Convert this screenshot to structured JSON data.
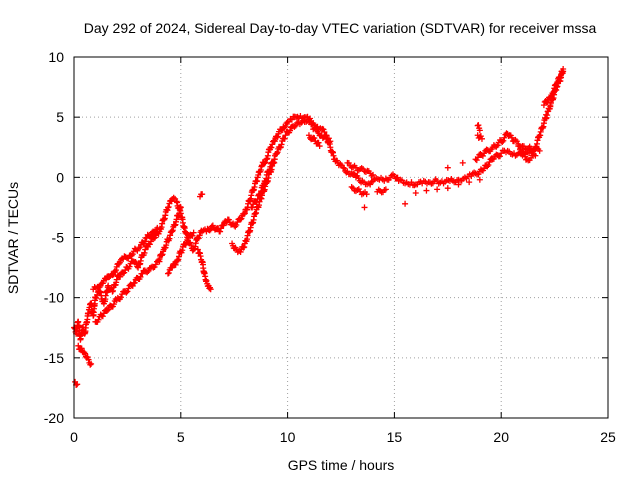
{
  "chart_data": {
    "type": "scatter",
    "title": "Day 292 of 2024, Sidereal Day-to-day VTEC variation (SDTVAR) for receiver mssa",
    "xlabel": "GPS time / hours",
    "ylabel": "SDTVAR / TECUs",
    "xlim": [
      0,
      25
    ],
    "ylim": [
      -20,
      10
    ],
    "xticks": [
      0,
      5,
      10,
      15,
      20,
      25
    ],
    "yticks": [
      -20,
      -15,
      -10,
      -5,
      0,
      5,
      10
    ],
    "grid": true,
    "marker": "+",
    "color": "#ff0000",
    "series": [
      {
        "name": "SDTVAR",
        "points": [
          [
            0.0,
            -12.5
          ],
          [
            0.1,
            -13.0
          ],
          [
            0.2,
            -12.0
          ],
          [
            0.3,
            -13.5
          ],
          [
            0.4,
            -12.5
          ],
          [
            0.5,
            -13.0
          ],
          [
            0.6,
            -12.0
          ],
          [
            0.7,
            -11.0
          ],
          [
            0.8,
            -10.5
          ],
          [
            0.9,
            -11.5
          ],
          [
            1.0,
            -10.0
          ],
          [
            1.2,
            -9.5
          ],
          [
            1.4,
            -10.5
          ],
          [
            1.6,
            -9.0
          ],
          [
            1.8,
            -9.5
          ],
          [
            2.0,
            -8.5
          ],
          [
            2.2,
            -8.0
          ],
          [
            2.5,
            -7.5
          ],
          [
            2.8,
            -7.0
          ],
          [
            3.0,
            -7.5
          ],
          [
            3.2,
            -6.5
          ],
          [
            3.5,
            -5.5
          ],
          [
            3.8,
            -5.0
          ],
          [
            4.0,
            -4.5
          ],
          [
            4.2,
            -3.5
          ],
          [
            4.4,
            -2.5
          ],
          [
            4.6,
            -1.8
          ],
          [
            4.8,
            -2.0
          ],
          [
            5.0,
            -3.0
          ],
          [
            5.2,
            -4.5
          ],
          [
            5.4,
            -5.5
          ],
          [
            5.6,
            -6.0
          ],
          [
            5.8,
            -5.0
          ],
          [
            6.0,
            -4.5
          ],
          [
            6.2,
            -4.5
          ],
          [
            6.5,
            -4.0
          ],
          [
            6.8,
            -4.5
          ],
          [
            7.0,
            -4.0
          ],
          [
            7.2,
            -3.5
          ],
          [
            7.5,
            -4.0
          ],
          [
            7.8,
            -3.5
          ],
          [
            8.0,
            -3.0
          ],
          [
            8.2,
            -2.0
          ],
          [
            8.4,
            -1.0
          ],
          [
            8.6,
            0.0
          ],
          [
            8.8,
            1.0
          ],
          [
            9.0,
            1.5
          ],
          [
            9.2,
            2.5
          ],
          [
            9.4,
            3.0
          ],
          [
            9.6,
            3.8
          ],
          [
            9.8,
            4.2
          ],
          [
            10.0,
            4.6
          ],
          [
            10.2,
            4.8
          ],
          [
            10.4,
            5.0
          ],
          [
            10.6,
            5.1
          ],
          [
            10.8,
            5.0
          ],
          [
            11.0,
            4.8
          ],
          [
            11.2,
            4.5
          ],
          [
            11.4,
            4.2
          ],
          [
            11.6,
            4.0
          ],
          [
            11.8,
            3.5
          ],
          [
            12.0,
            2.5
          ],
          [
            12.2,
            1.5
          ],
          [
            12.4,
            1.0
          ],
          [
            12.6,
            0.8
          ],
          [
            12.8,
            0.5
          ],
          [
            13.0,
            0.3
          ],
          [
            13.2,
            0.0
          ],
          [
            13.5,
            -0.3
          ],
          [
            13.8,
            -0.5
          ],
          [
            14.0,
            -0.3
          ],
          [
            14.3,
            -0.2
          ],
          [
            14.6,
            -0.1
          ],
          [
            15.0,
            0.1
          ],
          [
            15.2,
            -0.3
          ],
          [
            15.5,
            -0.5
          ],
          [
            15.8,
            -0.4
          ],
          [
            16.0,
            -0.6
          ],
          [
            16.3,
            -0.5
          ],
          [
            16.6,
            -0.4
          ],
          [
            17.0,
            -0.3
          ],
          [
            17.3,
            -0.5
          ],
          [
            17.6,
            -0.3
          ],
          [
            18.0,
            -0.2
          ],
          [
            18.3,
            0.0
          ],
          [
            18.6,
            0.1
          ],
          [
            19.0,
            0.5
          ],
          [
            19.3,
            1.0
          ],
          [
            19.6,
            1.5
          ],
          [
            20.0,
            2.0
          ],
          [
            20.3,
            2.2
          ],
          [
            20.6,
            2.0
          ],
          [
            21.0,
            1.8
          ],
          [
            21.3,
            2.0
          ],
          [
            21.6,
            2.5
          ],
          [
            21.8,
            3.5
          ],
          [
            22.0,
            4.5
          ],
          [
            22.2,
            5.5
          ],
          [
            22.4,
            6.5
          ],
          [
            22.6,
            7.5
          ],
          [
            22.8,
            8.3
          ],
          [
            22.9,
            8.8
          ],
          [
            0.2,
            -14.0
          ],
          [
            0.4,
            -14.5
          ],
          [
            0.6,
            -15.0
          ],
          [
            0.8,
            -15.5
          ],
          [
            0.05,
            -17.0
          ],
          [
            0.15,
            -17.2
          ],
          [
            0.9,
            -9.3
          ],
          [
            1.1,
            -9.1
          ],
          [
            1.3,
            -8.8
          ],
          [
            1.5,
            -8.5
          ],
          [
            1.7,
            -8.2
          ],
          [
            1.9,
            -7.8
          ],
          [
            2.1,
            -7.2
          ],
          [
            2.3,
            -6.8
          ],
          [
            2.6,
            -6.5
          ],
          [
            2.9,
            -6.0
          ],
          [
            3.1,
            -5.8
          ],
          [
            3.4,
            -5.0
          ],
          [
            3.7,
            -4.5
          ],
          [
            3.9,
            -4.2
          ],
          [
            4.0,
            -6.8
          ],
          [
            4.2,
            -6.0
          ],
          [
            4.4,
            -5.2
          ],
          [
            4.6,
            -4.5
          ],
          [
            4.8,
            -3.5
          ],
          [
            5.0,
            -2.5
          ],
          [
            5.8,
            -6.0
          ],
          [
            6.0,
            -7.0
          ],
          [
            6.1,
            -8.0
          ],
          [
            6.2,
            -8.6
          ],
          [
            6.3,
            -9.0
          ],
          [
            6.4,
            -9.3
          ],
          [
            5.9,
            -1.6
          ],
          [
            6.0,
            -1.4
          ],
          [
            4.4,
            -8.0
          ],
          [
            4.6,
            -7.5
          ],
          [
            4.8,
            -7.0
          ],
          [
            5.0,
            -6.2
          ],
          [
            5.3,
            -5.2
          ],
          [
            5.6,
            -4.6
          ],
          [
            7.4,
            -5.5
          ],
          [
            7.6,
            -6.0
          ],
          [
            7.8,
            -6.2
          ],
          [
            8.0,
            -5.5
          ],
          [
            8.2,
            -4.5
          ],
          [
            8.5,
            -3.0
          ],
          [
            8.8,
            -1.5
          ],
          [
            9.0,
            -0.5
          ],
          [
            9.2,
            0.5
          ],
          [
            9.4,
            1.5
          ],
          [
            11.2,
            4.0
          ],
          [
            11.4,
            3.8
          ],
          [
            11.6,
            3.5
          ],
          [
            11.8,
            3.2
          ],
          [
            12.0,
            3.0
          ],
          [
            11.0,
            3.5
          ],
          [
            11.3,
            3.0
          ],
          [
            11.5,
            2.6
          ],
          [
            12.8,
            1.2
          ],
          [
            13.2,
            0.8
          ],
          [
            13.6,
            0.5
          ],
          [
            14.0,
            0.2
          ],
          [
            13.0,
            -0.8
          ],
          [
            13.4,
            -1.2
          ],
          [
            13.7,
            -1.4
          ],
          [
            14.2,
            -1.2
          ],
          [
            14.6,
            -1.0
          ],
          [
            13.6,
            -2.5
          ],
          [
            15.5,
            -2.2
          ],
          [
            16.0,
            -1.3
          ],
          [
            16.5,
            -1.1
          ],
          [
            17.0,
            -1.0
          ],
          [
            17.5,
            -0.9
          ],
          [
            18.0,
            -0.6
          ],
          [
            18.5,
            -0.4
          ],
          [
            19.0,
            -0.2
          ],
          [
            17.5,
            0.8
          ],
          [
            18.2,
            1.2
          ],
          [
            18.8,
            1.5
          ],
          [
            19.2,
            2.0
          ],
          [
            19.6,
            2.5
          ],
          [
            20.0,
            3.0
          ],
          [
            20.3,
            3.6
          ],
          [
            20.6,
            3.0
          ],
          [
            21.0,
            2.6
          ],
          [
            21.4,
            2.4
          ],
          [
            21.8,
            2.2
          ],
          [
            18.9,
            4.3
          ],
          [
            19.0,
            3.9
          ],
          [
            18.9,
            3.5
          ],
          [
            19.1,
            3.2
          ],
          [
            20.8,
            2.6
          ],
          [
            21.2,
            1.5
          ],
          [
            21.6,
            1.8
          ],
          [
            22.0,
            6.0
          ],
          [
            22.2,
            6.5
          ],
          [
            22.4,
            7.0
          ],
          [
            22.6,
            7.8
          ],
          [
            22.8,
            8.5
          ],
          [
            22.9,
            9.0
          ],
          [
            22.7,
            8.0
          ],
          [
            22.5,
            7.2
          ],
          [
            22.3,
            6.0
          ],
          [
            22.1,
            5.2
          ],
          [
            8.3,
            -2.5
          ],
          [
            8.6,
            -1.8
          ],
          [
            8.9,
            -0.5
          ],
          [
            9.1,
            0.5
          ],
          [
            9.5,
            2.0
          ],
          [
            9.9,
            3.5
          ],
          [
            10.2,
            4.2
          ],
          [
            10.5,
            4.6
          ],
          [
            10.8,
            4.6
          ],
          [
            11.1,
            4.4
          ],
          [
            1.0,
            -12.0
          ],
          [
            1.3,
            -11.5
          ],
          [
            1.6,
            -11.0
          ],
          [
            2.0,
            -10.2
          ],
          [
            2.4,
            -9.5
          ],
          [
            2.8,
            -8.8
          ],
          [
            3.2,
            -8.0
          ],
          [
            3.6,
            -7.5
          ],
          [
            4.0,
            -7.0
          ]
        ]
      }
    ]
  }
}
